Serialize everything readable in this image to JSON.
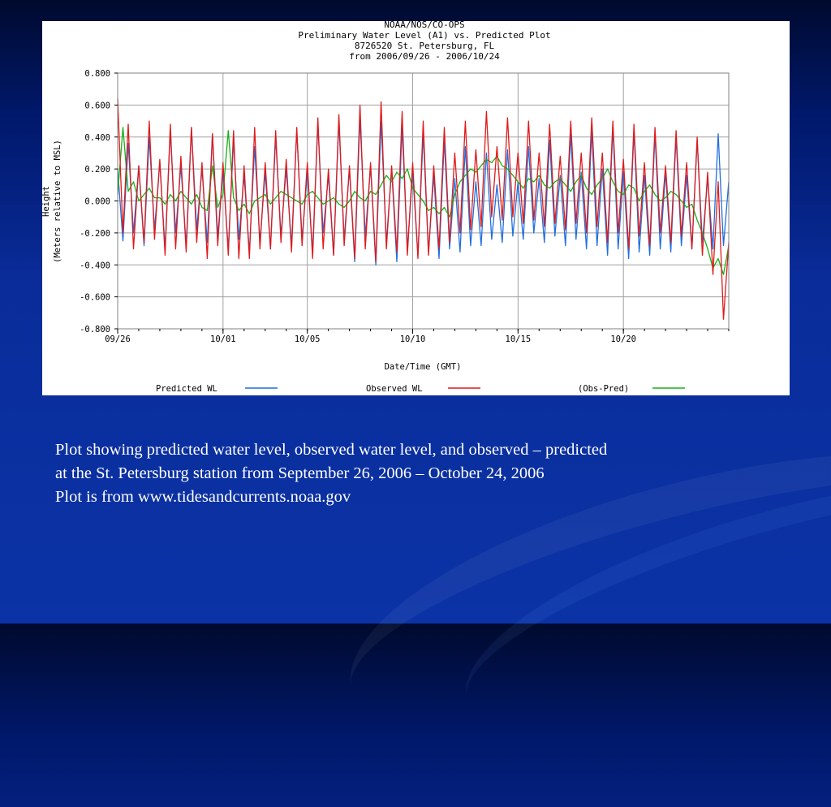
{
  "slide": {
    "caption_lines": [
      "Plot showing predicted water level, observed water level, and observed – predicted",
      "at the St. Petersburg station from September 26, 2006 – October 24, 2006",
      "Plot is from www.tidesandcurrents.noaa.gov"
    ]
  },
  "chart_data": {
    "type": "line",
    "title_lines": [
      "NOAA/NOS/CO-OPS",
      "Preliminary  Water Level (A1) vs. Predicted Plot",
      "8726520 St. Petersburg, FL",
      "from 2006/09/26 - 2006/10/24"
    ],
    "xlabel": "Date/Time (GMT)",
    "ylabel": [
      "Height",
      "(Meters relative to MSL)"
    ],
    "ylim": [
      -0.8,
      0.8
    ],
    "xlim_days": [
      0,
      29
    ],
    "y_ticks": [
      0.8,
      0.6,
      0.4,
      0.2,
      0.0,
      -0.2,
      -0.4,
      -0.6,
      -0.8
    ],
    "y_tick_labels": [
      "0.800",
      "0.600",
      "0.400",
      "0.200",
      "0.000",
      "-0.200",
      "-0.400",
      "-0.600",
      "-0.800"
    ],
    "x_ticks": [
      0,
      5,
      9,
      14,
      19,
      24
    ],
    "x_tick_labels": [
      "09/26",
      "10/01",
      "10/05",
      "10/10",
      "10/15",
      "10/20"
    ],
    "grid": true,
    "legend_position": "bottom",
    "series": [
      {
        "name": "Predicted WL",
        "color": "#1f6fe0",
        "t": [
          0.0,
          0.25,
          0.5,
          0.75,
          1.0,
          1.25,
          1.5,
          1.75,
          2.0,
          2.25,
          2.5,
          2.75,
          3.0,
          3.25,
          3.5,
          3.75,
          4.0,
          4.25,
          4.5,
          4.75,
          5.0,
          5.25,
          5.5,
          5.75,
          6.0,
          6.25,
          6.5,
          6.75,
          7.0,
          7.25,
          7.5,
          7.75,
          8.0,
          8.25,
          8.5,
          8.75,
          9.0,
          9.25,
          9.5,
          9.75,
          10.0,
          10.25,
          10.5,
          10.75,
          11.0,
          11.25,
          11.5,
          11.75,
          12.0,
          12.25,
          12.5,
          12.75,
          13.0,
          13.25,
          13.5,
          13.75,
          14.0,
          14.25,
          14.5,
          14.75,
          15.0,
          15.25,
          15.5,
          15.75,
          16.0,
          16.25,
          16.5,
          16.75,
          17.0,
          17.25,
          17.5,
          17.75,
          18.0,
          18.25,
          18.5,
          18.75,
          19.0,
          19.25,
          19.5,
          19.75,
          20.0,
          20.25,
          20.5,
          20.75,
          21.0,
          21.25,
          21.5,
          21.75,
          22.0,
          22.25,
          22.5,
          22.75,
          23.0,
          23.25,
          23.5,
          23.75,
          24.0,
          24.25,
          24.5,
          24.75,
          25.0,
          25.25,
          25.5,
          25.75,
          26.0,
          26.25,
          26.5,
          26.75,
          27.0,
          27.25,
          27.5,
          27.75,
          28.0,
          28.25,
          28.5,
          28.75,
          29.0
        ],
        "values": [
          0.2,
          -0.25,
          0.36,
          -0.2,
          0.22,
          -0.28,
          0.4,
          -0.18,
          0.24,
          -0.3,
          0.44,
          -0.2,
          0.22,
          -0.28,
          0.46,
          -0.18,
          0.2,
          -0.26,
          0.42,
          -0.22,
          0.18,
          -0.3,
          0.38,
          -0.24,
          0.16,
          -0.32,
          0.34,
          -0.26,
          0.18,
          -0.3,
          0.4,
          -0.22,
          0.2,
          -0.28,
          0.44,
          -0.24,
          0.18,
          -0.32,
          0.48,
          -0.2,
          0.16,
          -0.34,
          0.5,
          -0.24,
          0.2,
          -0.38,
          0.52,
          -0.22,
          0.22,
          -0.4,
          0.5,
          -0.26,
          0.2,
          -0.38,
          0.46,
          -0.3,
          0.18,
          -0.34,
          0.42,
          -0.32,
          0.16,
          -0.36,
          0.38,
          -0.3,
          0.14,
          -0.32,
          0.34,
          -0.28,
          0.12,
          -0.28,
          0.3,
          -0.24,
          0.1,
          -0.26,
          0.32,
          -0.22,
          0.12,
          -0.24,
          0.34,
          -0.2,
          0.14,
          -0.26,
          0.38,
          -0.22,
          0.16,
          -0.28,
          0.42,
          -0.24,
          0.18,
          -0.3,
          0.44,
          -0.28,
          0.2,
          -0.34,
          0.46,
          -0.3,
          0.18,
          -0.36,
          0.44,
          -0.32,
          0.16,
          -0.34,
          0.42,
          -0.3,
          0.18,
          -0.32,
          0.4,
          -0.28,
          0.16,
          -0.3,
          0.38,
          -0.26,
          0.14,
          -0.3,
          0.42,
          -0.28,
          0.12
        ]
      },
      {
        "name": "Observed WL",
        "color": "#e01a1a",
        "t": [
          0.0,
          0.25,
          0.5,
          0.75,
          1.0,
          1.25,
          1.5,
          1.75,
          2.0,
          2.25,
          2.5,
          2.75,
          3.0,
          3.25,
          3.5,
          3.75,
          4.0,
          4.25,
          4.5,
          4.75,
          5.0,
          5.25,
          5.5,
          5.75,
          6.0,
          6.25,
          6.5,
          6.75,
          7.0,
          7.25,
          7.5,
          7.75,
          8.0,
          8.25,
          8.5,
          8.75,
          9.0,
          9.25,
          9.5,
          9.75,
          10.0,
          10.25,
          10.5,
          10.75,
          11.0,
          11.25,
          11.5,
          11.75,
          12.0,
          12.25,
          12.5,
          12.75,
          13.0,
          13.25,
          13.5,
          13.75,
          14.0,
          14.25,
          14.5,
          14.75,
          15.0,
          15.25,
          15.5,
          15.75,
          16.0,
          16.25,
          16.5,
          16.75,
          17.0,
          17.25,
          17.5,
          17.75,
          18.0,
          18.25,
          18.5,
          18.75,
          19.0,
          19.25,
          19.5,
          19.75,
          20.0,
          20.25,
          20.5,
          20.75,
          21.0,
          21.25,
          21.5,
          21.75,
          22.0,
          22.25,
          22.5,
          22.75,
          23.0,
          23.25,
          23.5,
          23.75,
          24.0,
          24.25,
          24.5,
          24.75,
          25.0,
          25.25,
          25.5,
          25.75,
          26.0,
          26.25,
          26.5,
          26.75,
          27.0,
          27.25,
          27.5,
          27.75,
          28.0,
          28.25,
          28.5,
          28.75,
          29.0
        ],
        "values": [
          0.64,
          -0.2,
          0.48,
          -0.3,
          0.22,
          -0.26,
          0.5,
          -0.24,
          0.26,
          -0.34,
          0.48,
          -0.3,
          0.28,
          -0.32,
          0.46,
          -0.26,
          0.24,
          -0.36,
          0.42,
          -0.28,
          0.24,
          -0.34,
          0.44,
          -0.36,
          0.22,
          -0.36,
          0.46,
          -0.3,
          0.24,
          -0.3,
          0.44,
          -0.26,
          0.26,
          -0.32,
          0.46,
          -0.28,
          0.24,
          -0.36,
          0.52,
          -0.3,
          0.2,
          -0.34,
          0.54,
          -0.28,
          0.22,
          -0.36,
          0.6,
          -0.3,
          0.24,
          -0.38,
          0.62,
          -0.3,
          0.22,
          -0.32,
          0.56,
          -0.34,
          0.24,
          -0.36,
          0.5,
          -0.34,
          0.22,
          -0.3,
          0.46,
          -0.26,
          0.3,
          -0.2,
          0.5,
          -0.18,
          0.32,
          -0.16,
          0.56,
          -0.1,
          0.34,
          -0.12,
          0.52,
          -0.1,
          0.3,
          -0.14,
          0.5,
          -0.12,
          0.3,
          -0.16,
          0.48,
          -0.14,
          0.28,
          -0.18,
          0.5,
          -0.14,
          0.3,
          -0.2,
          0.52,
          -0.16,
          0.3,
          -0.26,
          0.5,
          -0.2,
          0.26,
          -0.3,
          0.48,
          -0.22,
          0.24,
          -0.28,
          0.46,
          -0.2,
          0.22,
          -0.26,
          0.44,
          -0.22,
          0.24,
          -0.3,
          0.4,
          -0.34,
          0.18,
          -0.46,
          0.12,
          -0.74,
          -0.26
        ]
      },
      {
        "name": "(Obs-Pred)",
        "color": "#18b018",
        "t": [
          0.0,
          0.25,
          0.5,
          0.75,
          1.0,
          1.25,
          1.5,
          1.75,
          2.0,
          2.25,
          2.5,
          2.75,
          3.0,
          3.25,
          3.5,
          3.75,
          4.0,
          4.25,
          4.5,
          4.75,
          5.0,
          5.25,
          5.5,
          5.75,
          6.0,
          6.25,
          6.5,
          6.75,
          7.0,
          7.25,
          7.5,
          7.75,
          8.0,
          8.25,
          8.5,
          8.75,
          9.0,
          9.25,
          9.5,
          9.75,
          10.0,
          10.25,
          10.5,
          10.75,
          11.0,
          11.25,
          11.5,
          11.75,
          12.0,
          12.25,
          12.5,
          12.75,
          13.0,
          13.25,
          13.5,
          13.75,
          14.0,
          14.25,
          14.5,
          14.75,
          15.0,
          15.25,
          15.5,
          15.75,
          16.0,
          16.25,
          16.5,
          16.75,
          17.0,
          17.25,
          17.5,
          17.75,
          18.0,
          18.25,
          18.5,
          18.75,
          19.0,
          19.25,
          19.5,
          19.75,
          20.0,
          20.25,
          20.5,
          20.75,
          21.0,
          21.25,
          21.5,
          21.75,
          22.0,
          22.25,
          22.5,
          22.75,
          23.0,
          23.25,
          23.5,
          23.75,
          24.0,
          24.25,
          24.5,
          24.75,
          25.0,
          25.25,
          25.5,
          25.75,
          26.0,
          26.25,
          26.5,
          26.75,
          27.0,
          27.25,
          27.5,
          27.75,
          28.0,
          28.25,
          28.5,
          28.75,
          29.0
        ],
        "values": [
          0.04,
          0.46,
          0.06,
          0.12,
          0.0,
          0.04,
          0.08,
          0.02,
          0.02,
          -0.02,
          0.04,
          0.0,
          0.06,
          0.02,
          -0.02,
          0.04,
          -0.04,
          -0.06,
          0.22,
          -0.04,
          0.04,
          0.44,
          0.02,
          -0.06,
          -0.02,
          -0.08,
          0.0,
          0.02,
          0.04,
          -0.02,
          0.02,
          0.06,
          0.04,
          0.02,
          0.0,
          -0.02,
          0.04,
          0.06,
          0.02,
          -0.02,
          0.0,
          0.02,
          -0.02,
          -0.04,
          0.0,
          0.06,
          0.02,
          0.0,
          0.06,
          0.04,
          0.1,
          0.16,
          0.12,
          0.18,
          0.14,
          0.2,
          0.08,
          0.04,
          0.0,
          -0.06,
          -0.04,
          -0.08,
          -0.04,
          -0.1,
          0.04,
          0.12,
          0.16,
          0.2,
          0.18,
          0.22,
          0.26,
          0.24,
          0.28,
          0.22,
          0.2,
          0.16,
          0.12,
          0.08,
          0.14,
          0.12,
          0.16,
          0.1,
          0.08,
          0.12,
          0.14,
          0.1,
          0.06,
          0.12,
          0.16,
          0.08,
          0.04,
          0.1,
          0.14,
          0.2,
          0.12,
          0.06,
          0.04,
          0.1,
          0.08,
          0.0,
          0.06,
          0.1,
          0.04,
          0.0,
          0.02,
          0.06,
          0.04,
          0.0,
          -0.04,
          -0.02,
          -0.12,
          -0.2,
          -0.3,
          -0.42,
          -0.36,
          -0.46,
          -0.28
        ]
      }
    ]
  }
}
